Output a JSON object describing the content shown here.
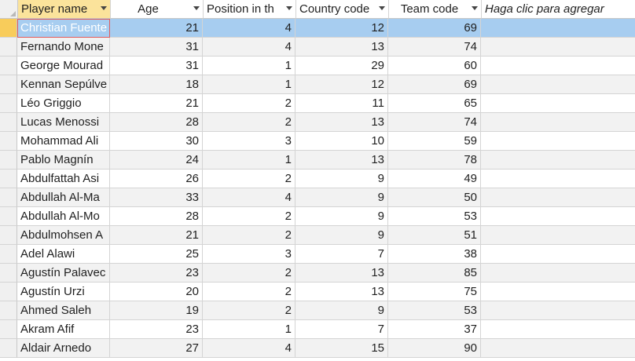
{
  "columns": {
    "player_name": "Player name",
    "age": "Age",
    "position": "Position in th",
    "country_code": "Country code",
    "team_code": "Team code",
    "add_column": "Haga clic para agregar"
  },
  "rows": [
    {
      "name": "Christian Fuente",
      "age": "21",
      "position": "4",
      "country": "12",
      "team": "69"
    },
    {
      "name": "Fernando Mone",
      "age": "31",
      "position": "4",
      "country": "13",
      "team": "74"
    },
    {
      "name": "George Mourad",
      "age": "31",
      "position": "1",
      "country": "29",
      "team": "60"
    },
    {
      "name": "Kennan Sepúlve",
      "age": "18",
      "position": "1",
      "country": "12",
      "team": "69"
    },
    {
      "name": "Léo Griggio",
      "age": "21",
      "position": "2",
      "country": "11",
      "team": "65"
    },
    {
      "name": "Lucas Menossi",
      "age": "28",
      "position": "2",
      "country": "13",
      "team": "74"
    },
    {
      "name": "Mohammad Ali",
      "age": "30",
      "position": "3",
      "country": "10",
      "team": "59"
    },
    {
      "name": "Pablo Magnín",
      "age": "24",
      "position": "1",
      "country": "13",
      "team": "78"
    },
    {
      "name": "Abdulfattah Asi",
      "age": "26",
      "position": "2",
      "country": "9",
      "team": "49"
    },
    {
      "name": "Abdullah Al-Ma",
      "age": "33",
      "position": "4",
      "country": "9",
      "team": "50"
    },
    {
      "name": "Abdullah Al-Mo",
      "age": "28",
      "position": "2",
      "country": "9",
      "team": "53"
    },
    {
      "name": "Abdulmohsen A",
      "age": "21",
      "position": "2",
      "country": "9",
      "team": "51"
    },
    {
      "name": "Adel Alawi",
      "age": "25",
      "position": "3",
      "country": "7",
      "team": "38"
    },
    {
      "name": "Agustín Palavec",
      "age": "23",
      "position": "2",
      "country": "13",
      "team": "85"
    },
    {
      "name": "Agustín Urzi",
      "age": "20",
      "position": "2",
      "country": "13",
      "team": "75"
    },
    {
      "name": "Ahmed Saleh",
      "age": "19",
      "position": "2",
      "country": "9",
      "team": "53"
    },
    {
      "name": "Akram Afif",
      "age": "23",
      "position": "1",
      "country": "7",
      "team": "37"
    },
    {
      "name": "Aldair Arnedo",
      "age": "27",
      "position": "4",
      "country": "15",
      "team": "90"
    }
  ],
  "colors": {
    "selected_row": "#a7cdf0",
    "active_header": "#fbe39b",
    "row_selector_active": "#f8cc5b"
  }
}
